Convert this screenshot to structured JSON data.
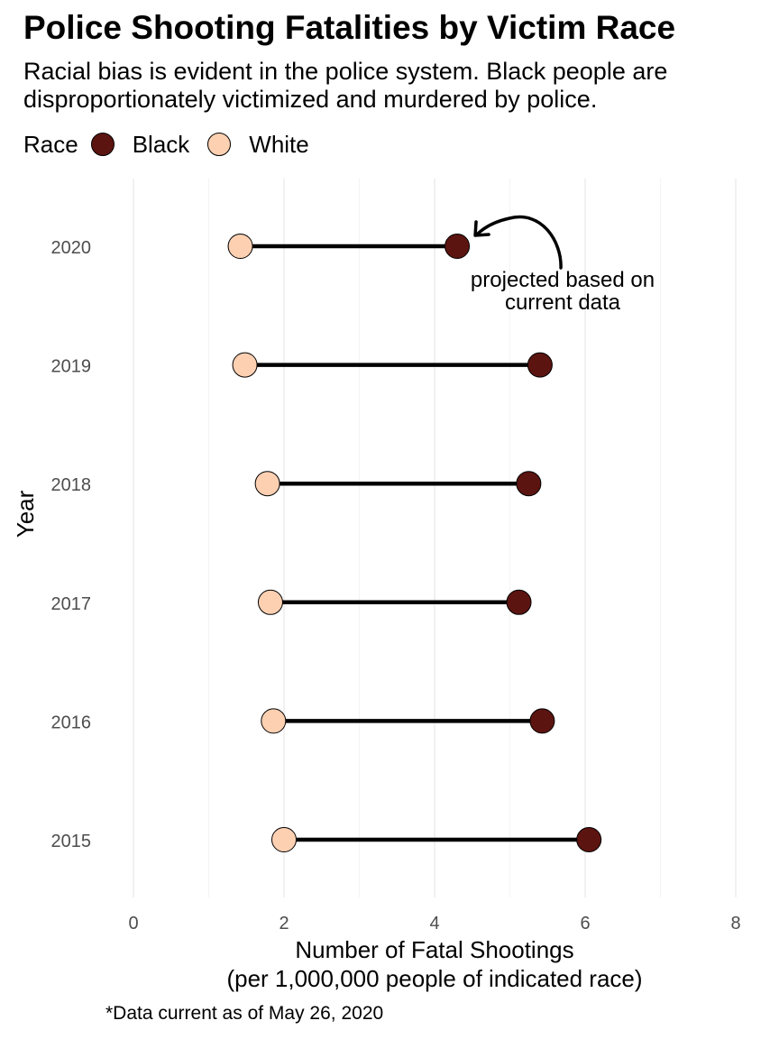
{
  "title": "Police Shooting Fatalities by Victim Race",
  "subtitle": "Racial bias is evident in the police system. Black people are disproportionately victimized and murdered by police.",
  "caption": "*Data current as of May 26, 2020",
  "legend": {
    "title": "Race",
    "items": [
      {
        "label": "Black",
        "color": "#5c1410"
      },
      {
        "label": "White",
        "color": "#fdd0b2"
      }
    ]
  },
  "chart_data": {
    "type": "dumbbell",
    "xlabel": [
      "Number of Fatal Shootings",
      "(per 1,000,000 people of indicated race)"
    ],
    "ylabel": "Year",
    "xlim": [
      0,
      8
    ],
    "xticks": [
      "0",
      "2",
      "4",
      "6",
      "8"
    ],
    "categories": [
      "2020",
      "2019",
      "2018",
      "2017",
      "2016",
      "2015"
    ],
    "series": [
      {
        "name": "Black",
        "color": "#5c1410",
        "values": [
          4.3,
          5.4,
          5.25,
          5.12,
          5.43,
          6.05
        ]
      },
      {
        "name": "White",
        "color": "#fdd0b2",
        "values": [
          1.42,
          1.48,
          1.78,
          1.82,
          1.86,
          2.0
        ]
      }
    ],
    "annotation": {
      "text": [
        "projected based on",
        "current data"
      ],
      "category": "2020"
    },
    "grid": true,
    "legend_position": "top-left"
  }
}
